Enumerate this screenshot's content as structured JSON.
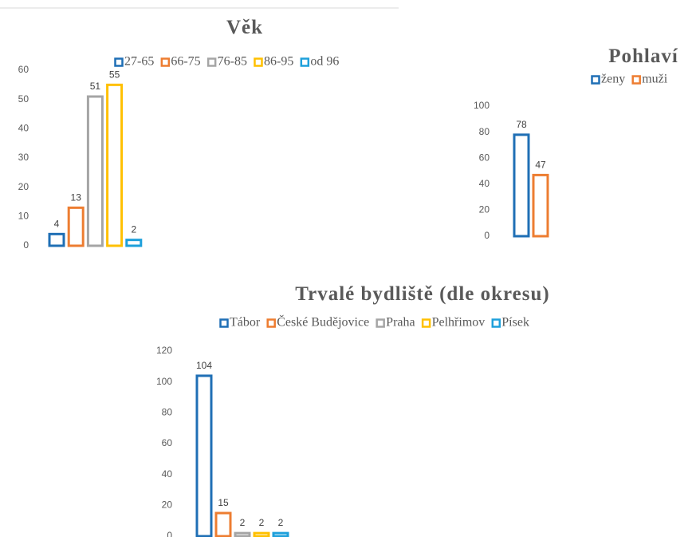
{
  "chart_data": [
    {
      "type": "bar",
      "title": "Věk",
      "categories": [
        null
      ],
      "series": [
        {
          "name": "27-65",
          "color": "#1f6fb5",
          "values": [
            4
          ]
        },
        {
          "name": "66-75",
          "color": "#ed7d31",
          "values": [
            13
          ]
        },
        {
          "name": "76-85",
          "color": "#a5a5a5",
          "values": [
            51
          ]
        },
        {
          "name": "86-95",
          "color": "#ffc000",
          "values": [
            55
          ]
        },
        {
          "name": "od 96",
          "color": "#1ea0db",
          "values": [
            2
          ]
        }
      ],
      "ylim": [
        0,
        60
      ],
      "yticks": [
        0,
        10,
        20,
        30,
        40,
        50,
        60
      ],
      "grid": false,
      "legend": "top"
    },
    {
      "type": "bar",
      "title": "Pohlaví",
      "categories": [
        null
      ],
      "series": [
        {
          "name": "ženy",
          "color": "#1f6fb5",
          "values": [
            78
          ]
        },
        {
          "name": "muži",
          "color": "#ed7d31",
          "values": [
            47
          ]
        }
      ],
      "ylim": [
        0,
        100
      ],
      "yticks": [
        0,
        20,
        40,
        60,
        80,
        100
      ],
      "grid": false,
      "legend": "top"
    },
    {
      "type": "bar",
      "title": "Trvalé bydliště (dle okresu)",
      "categories": [
        null
      ],
      "series": [
        {
          "name": "Tábor",
          "color": "#1f6fb5",
          "values": [
            104
          ]
        },
        {
          "name": "České Budějovice",
          "color": "#ed7d31",
          "values": [
            15
          ]
        },
        {
          "name": "Praha",
          "color": "#a5a5a5",
          "values": [
            2
          ]
        },
        {
          "name": "Pelhřimov",
          "color": "#ffc000",
          "values": [
            2
          ]
        },
        {
          "name": "Písek",
          "color": "#1ea0db",
          "values": [
            2
          ]
        }
      ],
      "ylim": [
        0,
        120
      ],
      "yticks": [
        0,
        20,
        40,
        60,
        80,
        100,
        120
      ],
      "grid": false,
      "legend": "top"
    }
  ]
}
